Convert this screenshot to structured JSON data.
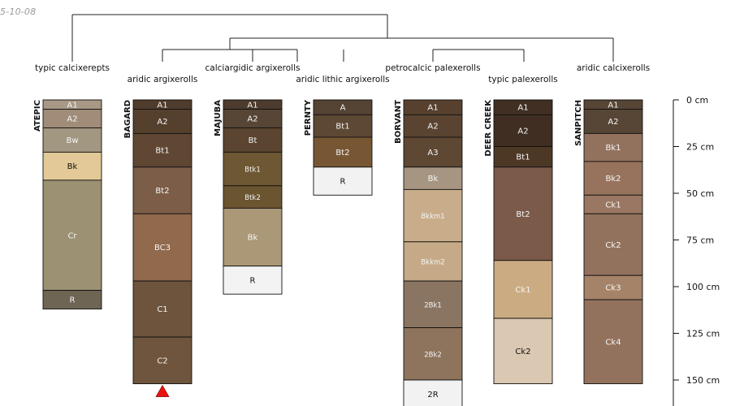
{
  "stamp": "5-10-08",
  "axis": {
    "ticks": [
      0,
      25,
      50,
      75,
      100,
      125,
      150
    ],
    "unit": "cm"
  },
  "taxa": [
    "typic calcixerepts",
    "aridic argixerolls",
    "calciargidic argixerolls",
    "aridic lithic argixerolls",
    "petrocalcic palexerolls",
    "typic palexerolls",
    "aridic calcixerolls"
  ],
  "chart_data": {
    "type": "table",
    "depth_unit": "cm",
    "profiles": [
      {
        "name": "ATEPIC",
        "taxon": "typic calcixerepts",
        "horizons": [
          {
            "name": "A1",
            "top": 0,
            "bottom": 5,
            "color": "#a89886"
          },
          {
            "name": "A2",
            "top": 5,
            "bottom": 15,
            "color": "#a08c78"
          },
          {
            "name": "Bw",
            "top": 15,
            "bottom": 28,
            "color": "#a29781"
          },
          {
            "name": "Bk",
            "top": 28,
            "bottom": 43,
            "color": "#e2c997"
          },
          {
            "name": "Cr",
            "top": 43,
            "bottom": 102,
            "color": "#9c9172"
          },
          {
            "name": "R",
            "top": 102,
            "bottom": 112,
            "color": "#6f6554"
          }
        ]
      },
      {
        "name": "BAGARD",
        "taxon": "aridic argixerolls",
        "horizons": [
          {
            "name": "A1",
            "top": 0,
            "bottom": 5,
            "color": "#503c2c"
          },
          {
            "name": "A2",
            "top": 5,
            "bottom": 18,
            "color": "#553f2d"
          },
          {
            "name": "Bt1",
            "top": 18,
            "bottom": 36,
            "color": "#5f4733"
          },
          {
            "name": "Bt2",
            "top": 36,
            "bottom": 61,
            "color": "#7c5e48"
          },
          {
            "name": "BC3",
            "top": 61,
            "bottom": 97,
            "color": "#91694d"
          },
          {
            "name": "C1",
            "top": 97,
            "bottom": 127,
            "color": "#6e543c"
          },
          {
            "name": "C2",
            "top": 127,
            "bottom": 152,
            "color": "#6f553d"
          }
        ]
      },
      {
        "name": "MAJUBA",
        "taxon": "calciargidic argixerolls",
        "horizons": [
          {
            "name": "A1",
            "top": 0,
            "bottom": 5,
            "color": "#4d3b2d"
          },
          {
            "name": "A2",
            "top": 5,
            "bottom": 15,
            "color": "#574535"
          },
          {
            "name": "Bt",
            "top": 15,
            "bottom": 28,
            "color": "#5b4530"
          },
          {
            "name": "Btk1",
            "top": 28,
            "bottom": 46,
            "color": "#6e5834"
          },
          {
            "name": "Btk2",
            "top": 46,
            "bottom": 58,
            "color": "#6b5430"
          },
          {
            "name": "Bk",
            "top": 58,
            "bottom": 89,
            "color": "#ab9877"
          },
          {
            "name": "R",
            "top": 89,
            "bottom": 104,
            "color": "#f3f3f3"
          }
        ]
      },
      {
        "name": "PERNTY",
        "taxon": "aridic lithic argixerolls",
        "horizons": [
          {
            "name": "A",
            "top": 0,
            "bottom": 8,
            "color": "#554334"
          },
          {
            "name": "Bt1",
            "top": 8,
            "bottom": 20,
            "color": "#5d4834"
          },
          {
            "name": "Bt2",
            "top": 20,
            "bottom": 36,
            "color": "#775733"
          },
          {
            "name": "R",
            "top": 36,
            "bottom": 51,
            "color": "#f2f2f2"
          }
        ]
      },
      {
        "name": "BORVANT",
        "taxon": "petrocalcic palexerolls",
        "horizons": [
          {
            "name": "A1",
            "top": 0,
            "bottom": 8,
            "color": "#57412e"
          },
          {
            "name": "A2",
            "top": 8,
            "bottom": 20,
            "color": "#5a4431"
          },
          {
            "name": "A3",
            "top": 20,
            "bottom": 36,
            "color": "#5e4733"
          },
          {
            "name": "Bk",
            "top": 36,
            "bottom": 48,
            "color": "#a69580"
          },
          {
            "name": "Bkkm1",
            "top": 48,
            "bottom": 76,
            "color": "#c9ad8a"
          },
          {
            "name": "Bkkm2",
            "top": 76,
            "bottom": 97,
            "color": "#c6aa87"
          },
          {
            "name": "2Bk1",
            "top": 97,
            "bottom": 122,
            "color": "#8a7562"
          },
          {
            "name": "2Bk2",
            "top": 122,
            "bottom": 150,
            "color": "#8e735d"
          },
          {
            "name": "2R",
            "top": 150,
            "bottom": 165,
            "color": "#f2f2f2"
          }
        ]
      },
      {
        "name": "DEER CREEK",
        "taxon": "typic palexerolls",
        "horizons": [
          {
            "name": "A1",
            "top": 0,
            "bottom": 8,
            "color": "#402f22"
          },
          {
            "name": "A2",
            "top": 8,
            "bottom": 25,
            "color": "#3f2e21"
          },
          {
            "name": "Bt1",
            "top": 25,
            "bottom": 36,
            "color": "#4d3826"
          },
          {
            "name": "Bt2",
            "top": 36,
            "bottom": 86,
            "color": "#7b5a4a"
          },
          {
            "name": "Ck1",
            "top": 86,
            "bottom": 117,
            "color": "#cbac82"
          },
          {
            "name": "Ck2",
            "top": 117,
            "bottom": 152,
            "color": "#dbc8b2"
          }
        ]
      },
      {
        "name": "SANPITCH",
        "taxon": "aridic calcixerolls",
        "horizons": [
          {
            "name": "A1",
            "top": 0,
            "bottom": 5,
            "color": "#574535"
          },
          {
            "name": "A2",
            "top": 5,
            "bottom": 18,
            "color": "#574535"
          },
          {
            "name": "Bk1",
            "top": 18,
            "bottom": 33,
            "color": "#93725d"
          },
          {
            "name": "Bk2",
            "top": 33,
            "bottom": 51,
            "color": "#97735d"
          },
          {
            "name": "Ck1",
            "top": 51,
            "bottom": 61,
            "color": "#9a7762"
          },
          {
            "name": "Ck2",
            "top": 61,
            "bottom": 94,
            "color": "#93725d"
          },
          {
            "name": "Ck3",
            "top": 94,
            "bottom": 107,
            "color": "#a58368"
          },
          {
            "name": "Ck4",
            "top": 107,
            "bottom": 152,
            "color": "#93725d"
          }
        ]
      }
    ],
    "truncated_profile": "BAGARD",
    "marker_color": "#e8140f",
    "dendrogram": "((ATEPIC,((BAGARD,(MAJUBA,PERNTY)),(BORVANT,(DEER CREEK,SANPITCH)))))"
  }
}
